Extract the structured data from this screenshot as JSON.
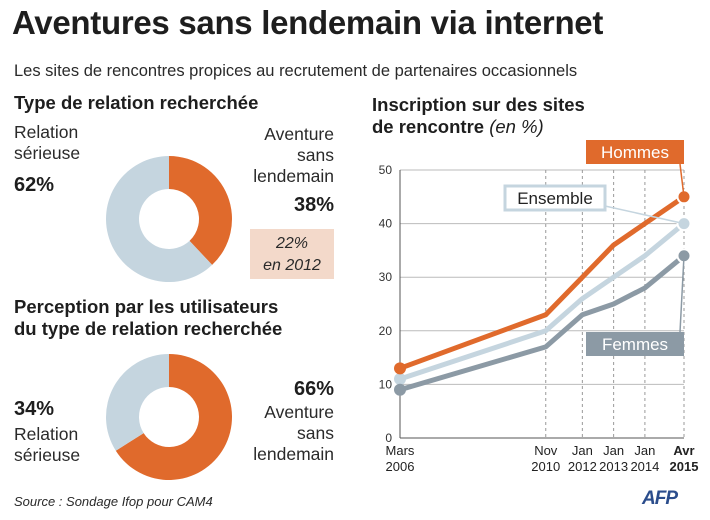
{
  "title": "Aventures sans lendemain via internet",
  "subtitle": "Les sites de rencontres propices au recrutement de partenaires occasionnels",
  "colors": {
    "orange": "#e06a2c",
    "light_blue": "#c5d5df",
    "grey_blue": "#8c9aa5",
    "box": "#f3d9ca"
  },
  "donut1": {
    "title": "Type de relation recherchée",
    "left_label": [
      "Relation",
      "sérieuse"
    ],
    "left_value": "62%",
    "right_label": [
      "Aventure",
      "sans",
      "lendemain"
    ],
    "right_value": "38%",
    "note": [
      "22%",
      "en 2012"
    ]
  },
  "donut2": {
    "title": [
      "Perception par les utilisateurs",
      "du type de relation recherchée"
    ],
    "left_value": "34%",
    "left_label": [
      "Relation",
      "sérieuse"
    ],
    "right_value": "66%",
    "right_label": [
      "Aventure",
      "sans",
      "lendemain"
    ]
  },
  "line_title": [
    "Inscription sur des sites",
    "de rencontre"
  ],
  "line_unit": "(en %)",
  "source": "Source : Sondage Ifop pour CAM4",
  "logo": "AFP",
  "chart_data": [
    {
      "type": "pie",
      "title": "Type de relation recherchée",
      "slices": [
        {
          "label": "Aventure sans lendemain",
          "value": 38,
          "color": "#e06a2c"
        },
        {
          "label": "Relation sérieuse",
          "value": 62,
          "color": "#c5d5df"
        }
      ]
    },
    {
      "type": "pie",
      "title": "Perception par les utilisateurs du type de relation recherchée",
      "slices": [
        {
          "label": "Aventure sans lendemain",
          "value": 66,
          "color": "#e06a2c"
        },
        {
          "label": "Relation sérieuse",
          "value": 34,
          "color": "#c5d5df"
        }
      ]
    },
    {
      "type": "line",
      "title": "Inscription sur des sites de rencontre (en %)",
      "categories": [
        [
          "Mars",
          "2006"
        ],
        [
          "Nov",
          "2010"
        ],
        [
          "Jan",
          "2012"
        ],
        [
          "Jan",
          "2013"
        ],
        [
          "Jan",
          "2014"
        ],
        [
          "Avr",
          "2015"
        ]
      ],
      "x": [
        2006.17,
        2010.83,
        2012.0,
        2013.0,
        2014.0,
        2015.25
      ],
      "xlim": [
        2006.17,
        2015.25
      ],
      "ylim": [
        0,
        50
      ],
      "yticks": [
        0,
        10,
        20,
        30,
        40,
        50
      ],
      "grid": true,
      "series": [
        {
          "name": "Hommes",
          "color": "#e06a2c",
          "values": [
            13,
            23,
            30,
            36,
            40,
            45
          ]
        },
        {
          "name": "Ensemble",
          "color": "#c5d5df",
          "values": [
            11,
            20,
            26,
            30,
            34,
            40
          ]
        },
        {
          "name": "Femmes",
          "color": "#8c9aa5",
          "values": [
            9,
            17,
            23,
            25,
            28,
            34
          ]
        }
      ]
    }
  ]
}
